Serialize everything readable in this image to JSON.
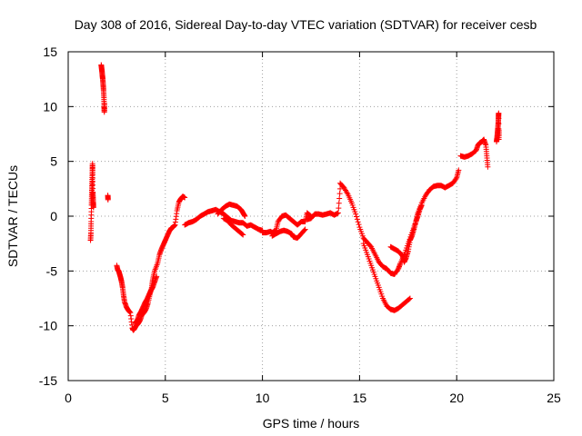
{
  "chart_data": {
    "type": "scatter",
    "title": "Day 308 of 2016, Sidereal Day-to-day VTEC variation (SDTVAR) for receiver cesb",
    "xlabel": "GPS time / hours",
    "ylabel": "SDTVAR / TECUs",
    "xlim": [
      0,
      25
    ],
    "ylim": [
      -15,
      15
    ],
    "x_ticks": [
      0,
      5,
      10,
      15,
      20,
      25
    ],
    "y_ticks": [
      -15,
      -10,
      -5,
      0,
      5,
      10,
      15
    ],
    "x_tick_labels": [
      "0",
      "5",
      "10",
      "15",
      "20",
      "25"
    ],
    "y_tick_labels": [
      "-15",
      "-10",
      "-5",
      "0",
      "5",
      "10",
      "15"
    ],
    "grid": true,
    "marker": "+",
    "color": "#ff0000",
    "segments": [
      {
        "name": "1.1-1.3h",
        "points": [
          [
            1.15,
            -2.2
          ],
          [
            1.17,
            -1.5
          ],
          [
            1.18,
            -0.5
          ],
          [
            1.2,
            1.0
          ],
          [
            1.21,
            1.8
          ],
          [
            1.22,
            2.5
          ],
          [
            1.23,
            3.2
          ],
          [
            1.24,
            4.0
          ],
          [
            1.25,
            4.8
          ],
          [
            1.26,
            3.8
          ],
          [
            1.27,
            2.2
          ],
          [
            1.28,
            1.7
          ],
          [
            1.29,
            1.2
          ],
          [
            1.3,
            0.8
          ]
        ]
      },
      {
        "name": "1.7-1.9h",
        "points": [
          [
            1.7,
            13.8
          ],
          [
            1.72,
            13.5
          ],
          [
            1.74,
            13.2
          ],
          [
            1.76,
            12.8
          ],
          [
            1.78,
            12.5
          ],
          [
            1.8,
            12.0
          ],
          [
            1.82,
            11.5
          ],
          [
            1.84,
            10.8
          ],
          [
            1.85,
            10.0
          ],
          [
            1.86,
            9.5
          ],
          [
            1.87,
            10.3
          ]
        ]
      },
      {
        "name": "2.05h",
        "points": [
          [
            2.04,
            1.9
          ],
          [
            2.05,
            1.5
          ]
        ]
      },
      {
        "name": "2.5-6h",
        "points": [
          [
            2.5,
            -4.5
          ],
          [
            2.55,
            -4.9
          ],
          [
            2.6,
            -5.0
          ],
          [
            2.65,
            -5.3
          ],
          [
            2.7,
            -5.6
          ],
          [
            2.75,
            -6.0
          ],
          [
            2.8,
            -6.5
          ],
          [
            2.85,
            -7.2
          ],
          [
            2.9,
            -7.8
          ],
          [
            3.0,
            -8.3
          ],
          [
            3.1,
            -8.6
          ],
          [
            3.2,
            -8.8
          ],
          [
            3.3,
            -10.2
          ],
          [
            3.35,
            -10.4
          ],
          [
            3.4,
            -10.3
          ],
          [
            3.5,
            -10.0
          ],
          [
            3.6,
            -9.8
          ],
          [
            3.7,
            -9.5
          ],
          [
            3.8,
            -9.0
          ],
          [
            3.9,
            -8.8
          ],
          [
            4.0,
            -8.5
          ],
          [
            4.1,
            -8.0
          ],
          [
            4.2,
            -7.2
          ],
          [
            4.3,
            -6.5
          ],
          [
            4.35,
            -5.8
          ],
          [
            4.45,
            -5.0
          ],
          [
            4.6,
            -4.3
          ],
          [
            4.7,
            -3.5
          ],
          [
            4.8,
            -3.0
          ],
          [
            4.9,
            -2.6
          ],
          [
            5.0,
            -2.2
          ],
          [
            5.1,
            -1.8
          ],
          [
            5.2,
            -1.4
          ],
          [
            5.3,
            -1.1
          ],
          [
            5.4,
            -1.0
          ],
          [
            5.5,
            -0.8
          ],
          [
            5.6,
            0.5
          ],
          [
            5.7,
            1.3
          ],
          [
            5.8,
            1.6
          ],
          [
            5.9,
            1.8
          ],
          [
            6.0,
            1.7
          ]
        ]
      },
      {
        "name": "3.4-4.5h",
        "points": [
          [
            3.45,
            -9.8
          ],
          [
            3.55,
            -9.5
          ],
          [
            3.65,
            -9.0
          ],
          [
            3.75,
            -8.7
          ],
          [
            3.85,
            -8.3
          ],
          [
            3.95,
            -7.9
          ],
          [
            4.05,
            -7.6
          ],
          [
            4.15,
            -7.2
          ],
          [
            4.25,
            -6.8
          ],
          [
            4.35,
            -6.5
          ],
          [
            4.45,
            -6.0
          ],
          [
            4.55,
            -5.5
          ]
        ]
      },
      {
        "name": "6-10h",
        "points": [
          [
            6.0,
            -0.8
          ],
          [
            6.2,
            -0.6
          ],
          [
            6.4,
            -0.5
          ],
          [
            6.6,
            -0.3
          ],
          [
            6.8,
            0.0
          ],
          [
            7.0,
            0.2
          ],
          [
            7.2,
            0.4
          ],
          [
            7.4,
            0.5
          ],
          [
            7.6,
            0.6
          ],
          [
            7.8,
            0.4
          ],
          [
            8.0,
            0.2
          ],
          [
            8.2,
            -0.1
          ],
          [
            8.4,
            -0.4
          ],
          [
            8.6,
            -0.5
          ],
          [
            8.8,
            -0.6
          ],
          [
            9.0,
            -0.6
          ],
          [
            9.2,
            -0.9
          ],
          [
            9.4,
            -0.8
          ],
          [
            9.6,
            -1.0
          ],
          [
            9.8,
            -1.2
          ],
          [
            10.0,
            -1.3
          ]
        ]
      },
      {
        "name": "7.7-9.1h upper loop",
        "points": [
          [
            7.7,
            0.2
          ],
          [
            7.9,
            0.6
          ],
          [
            8.1,
            0.9
          ],
          [
            8.3,
            1.1
          ],
          [
            8.5,
            1.0
          ],
          [
            8.7,
            0.9
          ],
          [
            8.9,
            0.6
          ],
          [
            9.0,
            0.3
          ],
          [
            9.1,
            0.0
          ]
        ]
      },
      {
        "name": "8-9h lower loop",
        "points": [
          [
            8.0,
            -0.2
          ],
          [
            8.2,
            -0.4
          ],
          [
            8.4,
            -0.8
          ],
          [
            8.6,
            -1.1
          ],
          [
            8.8,
            -1.4
          ],
          [
            9.0,
            -1.7
          ]
        ]
      },
      {
        "name": "10-12h",
        "points": [
          [
            10.0,
            -1.5
          ],
          [
            10.2,
            -1.5
          ],
          [
            10.4,
            -1.4
          ],
          [
            10.5,
            -1.5
          ],
          [
            10.7,
            -1.3
          ],
          [
            10.8,
            -0.5
          ],
          [
            11.0,
            0.0
          ],
          [
            11.2,
            0.1
          ],
          [
            11.4,
            -0.2
          ],
          [
            11.6,
            -0.5
          ],
          [
            11.8,
            -0.8
          ],
          [
            12.0,
            -0.5
          ],
          [
            12.2,
            -0.5
          ],
          [
            12.3,
            0.3
          ],
          [
            12.5,
            0.0
          ]
        ]
      },
      {
        "name": "10.5-12h lower",
        "points": [
          [
            10.5,
            -1.8
          ],
          [
            10.7,
            -1.6
          ],
          [
            10.9,
            -1.4
          ],
          [
            11.1,
            -1.3
          ],
          [
            11.3,
            -1.4
          ],
          [
            11.5,
            -1.6
          ],
          [
            11.6,
            -1.9
          ],
          [
            11.8,
            -2.0
          ],
          [
            12.0,
            -1.6
          ],
          [
            12.2,
            -1.2
          ]
        ]
      },
      {
        "name": "12.3-14h",
        "points": [
          [
            12.3,
            -0.3
          ],
          [
            12.5,
            -0.2
          ],
          [
            12.7,
            0.2
          ],
          [
            12.9,
            0.2
          ],
          [
            13.1,
            0.1
          ],
          [
            13.3,
            0.2
          ],
          [
            13.5,
            0.3
          ],
          [
            13.7,
            0.1
          ],
          [
            13.9,
            0.3
          ],
          [
            14.0,
            2.5
          ]
        ]
      },
      {
        "name": "14-17.6h upper",
        "points": [
          [
            14.0,
            3.0
          ],
          [
            14.2,
            2.6
          ],
          [
            14.4,
            2.0
          ],
          [
            14.6,
            1.2
          ],
          [
            14.8,
            0.2
          ],
          [
            15.0,
            -1.0
          ],
          [
            15.2,
            -2.0
          ],
          [
            15.4,
            -2.4
          ],
          [
            15.6,
            -2.8
          ],
          [
            15.8,
            -3.5
          ],
          [
            16.0,
            -4.2
          ],
          [
            16.2,
            -4.6
          ],
          [
            16.4,
            -4.8
          ],
          [
            16.6,
            -5.2
          ],
          [
            16.8,
            -5.3
          ],
          [
            17.0,
            -4.8
          ],
          [
            17.1,
            -4.3
          ],
          [
            17.3,
            -3.5
          ],
          [
            17.5,
            -2.5
          ],
          [
            17.7,
            -1.5
          ],
          [
            17.9,
            -0.5
          ],
          [
            18.0,
            0.3
          ],
          [
            18.2,
            1.2
          ],
          [
            18.4,
            1.9
          ],
          [
            18.6,
            2.4
          ],
          [
            18.8,
            2.7
          ],
          [
            19.0,
            2.8
          ],
          [
            19.2,
            2.8
          ],
          [
            19.4,
            2.6
          ],
          [
            19.6,
            2.8
          ],
          [
            19.8,
            3.0
          ],
          [
            20.0,
            3.5
          ],
          [
            20.1,
            4.2
          ]
        ]
      },
      {
        "name": "15.2-17.6h lower",
        "points": [
          [
            15.2,
            -2.5
          ],
          [
            15.4,
            -3.5
          ],
          [
            15.6,
            -4.5
          ],
          [
            15.8,
            -5.5
          ],
          [
            16.0,
            -6.5
          ],
          [
            16.2,
            -7.5
          ],
          [
            16.4,
            -8.2
          ],
          [
            16.6,
            -8.5
          ],
          [
            16.8,
            -8.6
          ],
          [
            17.0,
            -8.4
          ],
          [
            17.2,
            -8.1
          ],
          [
            17.4,
            -7.8
          ],
          [
            17.6,
            -7.5
          ]
        ]
      },
      {
        "name": "16.6-19h",
        "points": [
          [
            16.6,
            -2.8
          ],
          [
            16.8,
            -3.0
          ],
          [
            17.0,
            -3.2
          ],
          [
            17.2,
            -3.6
          ],
          [
            17.3,
            -4.2
          ],
          [
            17.4,
            -3.8
          ],
          [
            17.5,
            -3.2
          ],
          [
            17.6,
            -2.2
          ],
          [
            17.7,
            -1.8
          ],
          [
            17.8,
            -1.2
          ],
          [
            17.9,
            -0.5
          ],
          [
            18.0,
            0.0
          ],
          [
            18.1,
            0.6
          ],
          [
            18.2,
            1.0
          ]
        ]
      },
      {
        "name": "20.2-21.7h",
        "points": [
          [
            20.2,
            5.5
          ],
          [
            20.4,
            5.4
          ],
          [
            20.6,
            5.5
          ],
          [
            20.8,
            5.7
          ],
          [
            21.0,
            6.0
          ],
          [
            21.1,
            6.5
          ],
          [
            21.2,
            6.7
          ],
          [
            21.3,
            6.8
          ],
          [
            21.4,
            7.0
          ],
          [
            21.5,
            6.5
          ],
          [
            21.55,
            5.5
          ],
          [
            21.6,
            4.5
          ]
        ]
      },
      {
        "name": "22.1h",
        "points": [
          [
            22.05,
            6.8
          ],
          [
            22.08,
            7.2
          ],
          [
            22.1,
            7.6
          ],
          [
            22.12,
            8.0
          ],
          [
            22.14,
            8.5
          ],
          [
            22.15,
            9.0
          ],
          [
            22.16,
            9.4
          ],
          [
            22.17,
            7.0
          ],
          [
            22.18,
            7.8
          ]
        ]
      }
    ]
  }
}
